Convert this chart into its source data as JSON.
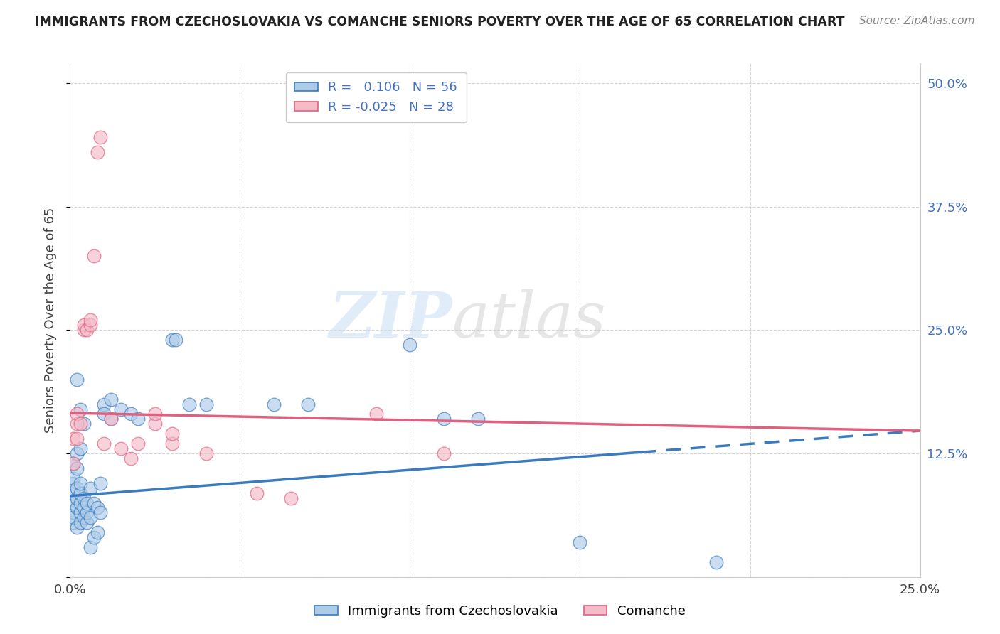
{
  "title": "IMMIGRANTS FROM CZECHOSLOVAKIA VS COMANCHE SENIORS POVERTY OVER THE AGE OF 65 CORRELATION CHART",
  "source": "Source: ZipAtlas.com",
  "ylabel": "Seniors Poverty Over the Age of 65",
  "xlim": [
    0.0,
    0.25
  ],
  "ylim": [
    0.0,
    0.52
  ],
  "blue_R": 0.106,
  "blue_N": 56,
  "pink_R": -0.025,
  "pink_N": 28,
  "blue_color": "#aecce8",
  "pink_color": "#f4bbc8",
  "blue_line_color": "#3a7bbf",
  "pink_line_color": "#e06080",
  "blue_scatter": [
    [
      0.001,
      0.055
    ],
    [
      0.001,
      0.065
    ],
    [
      0.001,
      0.075
    ],
    [
      0.001,
      0.085
    ],
    [
      0.001,
      0.095
    ],
    [
      0.001,
      0.1
    ],
    [
      0.001,
      0.115
    ],
    [
      0.001,
      0.06
    ],
    [
      0.002,
      0.05
    ],
    [
      0.002,
      0.07
    ],
    [
      0.002,
      0.08
    ],
    [
      0.002,
      0.09
    ],
    [
      0.002,
      0.11
    ],
    [
      0.002,
      0.125
    ],
    [
      0.002,
      0.2
    ],
    [
      0.003,
      0.055
    ],
    [
      0.003,
      0.065
    ],
    [
      0.003,
      0.075
    ],
    [
      0.003,
      0.085
    ],
    [
      0.003,
      0.095
    ],
    [
      0.003,
      0.13
    ],
    [
      0.003,
      0.17
    ],
    [
      0.004,
      0.06
    ],
    [
      0.004,
      0.07
    ],
    [
      0.004,
      0.08
    ],
    [
      0.004,
      0.155
    ],
    [
      0.005,
      0.055
    ],
    [
      0.005,
      0.065
    ],
    [
      0.005,
      0.075
    ],
    [
      0.006,
      0.03
    ],
    [
      0.006,
      0.06
    ],
    [
      0.006,
      0.09
    ],
    [
      0.007,
      0.04
    ],
    [
      0.007,
      0.075
    ],
    [
      0.008,
      0.045
    ],
    [
      0.008,
      0.07
    ],
    [
      0.009,
      0.065
    ],
    [
      0.009,
      0.095
    ],
    [
      0.01,
      0.175
    ],
    [
      0.01,
      0.165
    ],
    [
      0.012,
      0.16
    ],
    [
      0.012,
      0.18
    ],
    [
      0.015,
      0.17
    ],
    [
      0.018,
      0.165
    ],
    [
      0.02,
      0.16
    ],
    [
      0.03,
      0.24
    ],
    [
      0.031,
      0.24
    ],
    [
      0.035,
      0.175
    ],
    [
      0.04,
      0.175
    ],
    [
      0.06,
      0.175
    ],
    [
      0.07,
      0.175
    ],
    [
      0.1,
      0.235
    ],
    [
      0.11,
      0.16
    ],
    [
      0.12,
      0.16
    ],
    [
      0.15,
      0.035
    ],
    [
      0.19,
      0.015
    ]
  ],
  "pink_scatter": [
    [
      0.001,
      0.115
    ],
    [
      0.001,
      0.14
    ],
    [
      0.002,
      0.14
    ],
    [
      0.002,
      0.155
    ],
    [
      0.002,
      0.165
    ],
    [
      0.003,
      0.155
    ],
    [
      0.004,
      0.25
    ],
    [
      0.004,
      0.255
    ],
    [
      0.005,
      0.25
    ],
    [
      0.006,
      0.255
    ],
    [
      0.006,
      0.26
    ],
    [
      0.007,
      0.325
    ],
    [
      0.008,
      0.43
    ],
    [
      0.009,
      0.445
    ],
    [
      0.01,
      0.135
    ],
    [
      0.012,
      0.16
    ],
    [
      0.015,
      0.13
    ],
    [
      0.018,
      0.12
    ],
    [
      0.02,
      0.135
    ],
    [
      0.025,
      0.155
    ],
    [
      0.025,
      0.165
    ],
    [
      0.03,
      0.135
    ],
    [
      0.03,
      0.145
    ],
    [
      0.04,
      0.125
    ],
    [
      0.055,
      0.085
    ],
    [
      0.065,
      0.08
    ],
    [
      0.09,
      0.165
    ],
    [
      0.11,
      0.125
    ]
  ],
  "watermark_zip": "ZIP",
  "watermark_atlas": "atlas",
  "background_color": "#ffffff",
  "grid_color": "#d0d0d0",
  "right_tick_color": "#4472c4",
  "title_color": "#222222",
  "source_color": "#888888",
  "axis_label_color": "#444444"
}
